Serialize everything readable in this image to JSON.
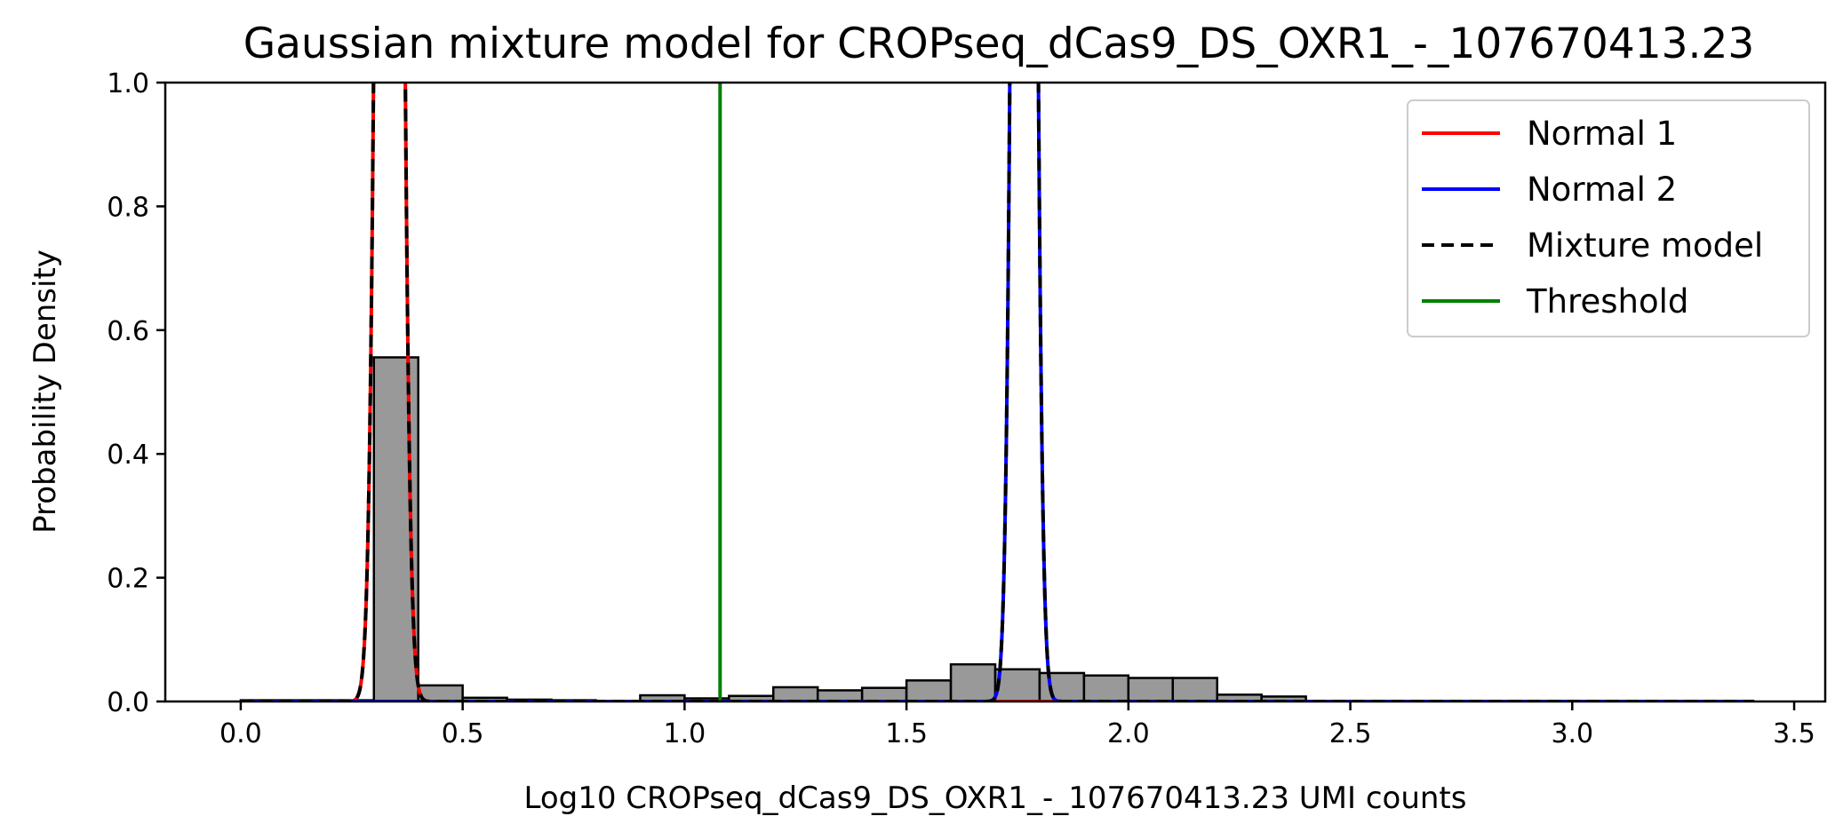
{
  "chart_data": {
    "type": "bar",
    "title": "Gaussian mixture model for CROPseq_dCas9_DS_OXR1_-_107670413.23",
    "xlabel": "Log10 CROPseq_dCas9_DS_OXR1_-_107670413.23 UMI counts",
    "ylabel": "Probability Density",
    "xlim": [
      -0.17,
      3.57
    ],
    "ylim": [
      0,
      1.0
    ],
    "xticks": [
      0.0,
      0.5,
      1.0,
      1.5,
      2.0,
      2.5,
      3.0,
      3.5
    ],
    "xtick_labels": [
      "0.0",
      "0.5",
      "1.0",
      "1.5",
      "2.0",
      "2.5",
      "3.0",
      "3.5"
    ],
    "yticks": [
      0.0,
      0.2,
      0.4,
      0.6,
      0.8,
      1.0
    ],
    "ytick_labels": [
      "0.0",
      "0.2",
      "0.4",
      "0.6",
      "0.8",
      "1.0"
    ],
    "histogram": {
      "color": "#999999",
      "edge_color": "#000000",
      "bins": [
        {
          "x0": 0.0,
          "x1": 0.3,
          "value": 0.002
        },
        {
          "x0": 0.3,
          "x1": 0.4,
          "value": 0.556
        },
        {
          "x0": 0.4,
          "x1": 0.5,
          "value": 0.026
        },
        {
          "x0": 0.5,
          "x1": 0.6,
          "value": 0.006
        },
        {
          "x0": 0.6,
          "x1": 0.7,
          "value": 0.003
        },
        {
          "x0": 0.7,
          "x1": 0.8,
          "value": 0.002
        },
        {
          "x0": 0.8,
          "x1": 0.9,
          "value": 0.001
        },
        {
          "x0": 0.9,
          "x1": 1.0,
          "value": 0.01
        },
        {
          "x0": 1.0,
          "x1": 1.1,
          "value": 0.005
        },
        {
          "x0": 1.1,
          "x1": 1.2,
          "value": 0.009
        },
        {
          "x0": 1.2,
          "x1": 1.3,
          "value": 0.023
        },
        {
          "x0": 1.3,
          "x1": 1.4,
          "value": 0.018
        },
        {
          "x0": 1.4,
          "x1": 1.5,
          "value": 0.022
        },
        {
          "x0": 1.5,
          "x1": 1.6,
          "value": 0.034
        },
        {
          "x0": 1.6,
          "x1": 1.7,
          "value": 0.06
        },
        {
          "x0": 1.7,
          "x1": 1.8,
          "value": 0.052
        },
        {
          "x0": 1.8,
          "x1": 1.9,
          "value": 0.046
        },
        {
          "x0": 1.9,
          "x1": 2.0,
          "value": 0.042
        },
        {
          "x0": 2.0,
          "x1": 2.1,
          "value": 0.038
        },
        {
          "x0": 2.1,
          "x1": 2.2,
          "value": 0.038
        },
        {
          "x0": 2.2,
          "x1": 2.3,
          "value": 0.011
        },
        {
          "x0": 2.3,
          "x1": 2.4,
          "value": 0.008
        },
        {
          "x0": 2.4,
          "x1": 3.4,
          "value": 0.0
        }
      ]
    },
    "series": [
      {
        "name": "Normal 1",
        "color": "#ff0000",
        "style": "solid",
        "mean": 0.335,
        "sd": 0.02,
        "amplitude": 5.0
      },
      {
        "name": "Normal 2",
        "color": "#0000ff",
        "style": "solid",
        "mean": 1.765,
        "sd": 0.018,
        "amplitude": 5.0
      },
      {
        "name": "Mixture model",
        "color": "#000000",
        "style": "dashed"
      }
    ],
    "curve_x_range": [
      0.0,
      3.41
    ],
    "threshold": {
      "name": "Threshold",
      "color": "#008000",
      "x": 1.08
    },
    "legend_position": "upper right",
    "grid": false
  }
}
